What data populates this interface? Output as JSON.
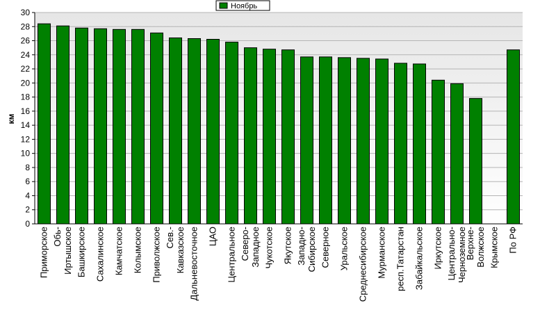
{
  "chart_data": {
    "type": "bar",
    "ylabel": "км",
    "ylim": [
      0,
      30
    ],
    "ytick_step": 2,
    "grid": true,
    "legend_position": "top-center",
    "series": [
      {
        "name": "Ноябрь",
        "color": "#008000",
        "values": [
          28.4,
          28.1,
          27.8,
          27.7,
          27.6,
          27.6,
          27.1,
          26.4,
          26.3,
          26.2,
          25.8,
          25.0,
          24.8,
          24.7,
          23.7,
          23.7,
          23.6,
          23.5,
          23.4,
          22.8,
          22.7,
          20.4,
          19.9,
          17.8,
          0,
          24.7
        ]
      }
    ],
    "categories": [
      [
        "Приморское"
      ],
      [
        "Обь-",
        "Иртышское"
      ],
      [
        "Башкирское"
      ],
      [
        "Сахалинское"
      ],
      [
        "Камчатское"
      ],
      [
        "Колымское"
      ],
      [
        "Приволжское"
      ],
      [
        "Сев.-",
        "Кавказское"
      ],
      [
        "Дальневосточное"
      ],
      [
        "ЦАО"
      ],
      [
        "Центральное"
      ],
      [
        "Северо-",
        "Западное"
      ],
      [
        "Чукотское"
      ],
      [
        "Якутское"
      ],
      [
        "Западно-",
        "Сибирское"
      ],
      [
        "Северное"
      ],
      [
        "Уральское"
      ],
      [
        "Среднесибирское"
      ],
      [
        "Мурманское"
      ],
      [
        "респ.Татарстан"
      ],
      [
        "Забайкальское"
      ],
      [
        "Иркутское"
      ],
      [
        "Центрально-",
        "Черноземное"
      ],
      [
        "Верхне-",
        "Волжское"
      ],
      [
        "Крымское"
      ],
      [
        "По РФ"
      ]
    ]
  },
  "colors": {
    "plot_background_top": "#e6e6e6",
    "plot_background_bottom": "#ffffff",
    "bar_fill": "#008000",
    "bar_stroke": "#000000",
    "grid": "#b4b4b4"
  }
}
